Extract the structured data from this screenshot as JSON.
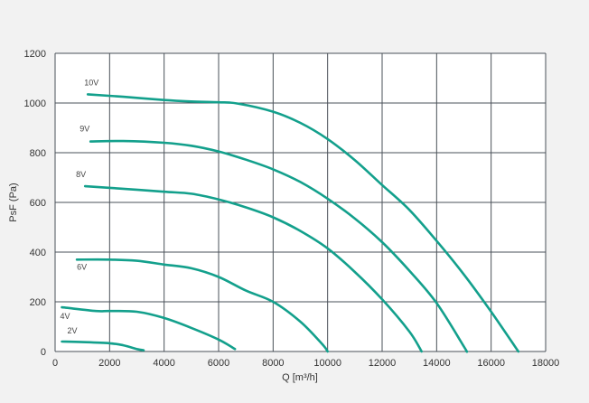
{
  "chart_data": {
    "type": "line",
    "title": "",
    "xlabel": "Q [m³/h]",
    "ylabel": "PsF (Pa)",
    "xlim": [
      0,
      18000
    ],
    "ylim": [
      0,
      1200
    ],
    "x_ticks": [
      0,
      2000,
      4000,
      6000,
      8000,
      10000,
      12000,
      14000,
      16000,
      18000
    ],
    "y_ticks": [
      0,
      200,
      400,
      600,
      800,
      1000,
      1200
    ],
    "grid": true,
    "line_color": "#13a08c",
    "series": [
      {
        "name": "10V",
        "x": [
          1200,
          2500,
          4000,
          5000,
          6000,
          6700,
          8000,
          9000,
          10000,
          11000,
          12000,
          13000,
          14000,
          15000,
          16000,
          17000
        ],
        "y": [
          1035,
          1025,
          1012,
          1006,
          1003,
          998,
          965,
          920,
          855,
          770,
          670,
          570,
          445,
          310,
          160,
          0
        ]
      },
      {
        "name": "9V",
        "x": [
          1300,
          2500,
          4000,
          5000,
          6000,
          7000,
          8000,
          9000,
          10000,
          11000,
          12000,
          13000,
          14000,
          15000,
          15100
        ],
        "y": [
          845,
          847,
          840,
          828,
          805,
          772,
          733,
          682,
          615,
          535,
          440,
          325,
          195,
          20,
          0
        ]
      },
      {
        "name": "8V",
        "x": [
          1100,
          2500,
          4000,
          5000,
          6000,
          7000,
          8000,
          9000,
          10000,
          11000,
          12000,
          13000,
          13450
        ],
        "y": [
          665,
          655,
          643,
          635,
          612,
          580,
          540,
          485,
          415,
          320,
          210,
          80,
          0
        ]
      },
      {
        "name": "6V",
        "x": [
          800,
          2000,
          3000,
          4000,
          5000,
          6000,
          7000,
          8000,
          9000,
          9800,
          10000
        ],
        "y": [
          370,
          370,
          365,
          350,
          335,
          300,
          245,
          200,
          120,
          30,
          0
        ]
      },
      {
        "name": "4V",
        "x": [
          250,
          1500,
          2000,
          3000,
          4000,
          5000,
          6000,
          6600
        ],
        "y": [
          178,
          163,
          163,
          160,
          135,
          95,
          48,
          10
        ]
      },
      {
        "name": "2V",
        "x": [
          250,
          1000,
          2000,
          2500,
          3000,
          3250
        ],
        "y": [
          40,
          38,
          33,
          25,
          10,
          5
        ]
      }
    ]
  }
}
